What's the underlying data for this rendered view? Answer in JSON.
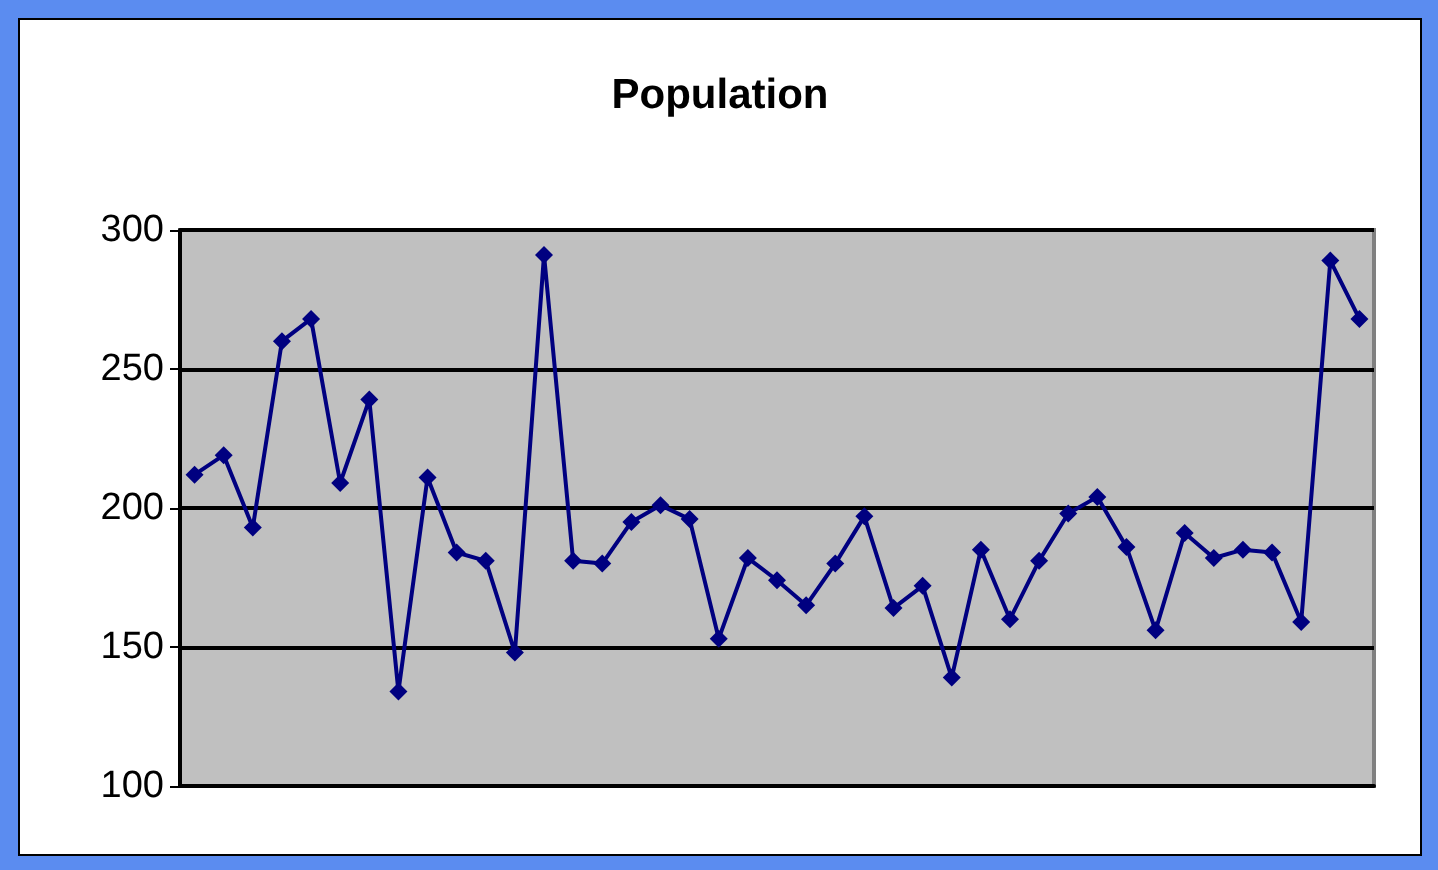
{
  "chart_data": {
    "type": "line",
    "title": "Population",
    "categories": [
      null,
      null,
      null,
      null,
      null,
      null,
      null,
      null,
      null,
      null,
      null,
      null,
      null,
      null,
      null,
      null,
      null,
      null,
      null,
      null,
      null,
      null,
      null,
      null,
      null,
      null,
      null,
      null,
      null,
      null,
      null,
      null,
      null,
      null,
      null,
      null,
      null,
      null,
      null,
      null,
      null
    ],
    "series": [
      {
        "color": "#000080",
        "values": [
          212,
          219,
          193,
          260,
          268,
          209,
          239,
          134,
          211,
          184,
          181,
          148,
          291,
          181,
          180,
          195,
          201,
          196,
          153,
          182,
          174,
          165,
          180,
          197,
          164,
          172,
          139,
          185,
          160,
          181,
          198,
          204,
          186,
          156,
          191,
          182,
          185,
          184,
          159,
          289,
          268
        ]
      }
    ],
    "ylim": [
      100,
      300
    ],
    "yticks": [
      100,
      150,
      200,
      250,
      300
    ],
    "grid": "y",
    "marker": "diamond",
    "line_style": "solid"
  }
}
